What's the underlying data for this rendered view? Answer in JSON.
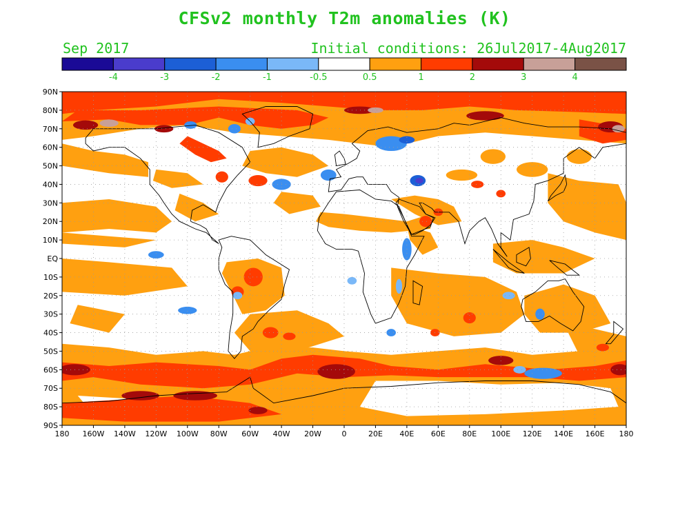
{
  "title": "CFSv2 monthly T2m anomalies (K)",
  "valid_month": "Sep 2017",
  "initial_conditions": "Initial conditions: 26Jul2017-4Aug2017",
  "legend": {
    "colors": [
      "#1a0a96",
      "#4a3ccc",
      "#1c5fd6",
      "#3a8ef0",
      "#7ab8f8",
      "#ffffff",
      "#ffa010",
      "#ff3c00",
      "#a40a0a",
      "#c8a098",
      "#7a5246"
    ],
    "labels": [
      "-4",
      "-3",
      "-2",
      "-1",
      "-0.5",
      "0.5",
      "1",
      "2",
      "3",
      "4"
    ],
    "label_color": "#21c21f"
  },
  "map": {
    "lat_labels": [
      "90N",
      "80N",
      "70N",
      "60N",
      "50N",
      "40N",
      "30N",
      "20N",
      "10N",
      "EQ",
      "10S",
      "20S",
      "30S",
      "40S",
      "50S",
      "60S",
      "70S",
      "80S",
      "90S"
    ],
    "lon_labels": [
      "180",
      "160W",
      "140W",
      "120W",
      "100W",
      "80W",
      "60W",
      "40W",
      "20W",
      "0",
      "20E",
      "40E",
      "60E",
      "80E",
      "100E",
      "120E",
      "140E",
      "160E",
      "180"
    ],
    "lon_range": [
      -180,
      180
    ],
    "lat_range": [
      -90,
      90
    ],
    "grid": "dotted",
    "projection": "equirectangular"
  }
}
